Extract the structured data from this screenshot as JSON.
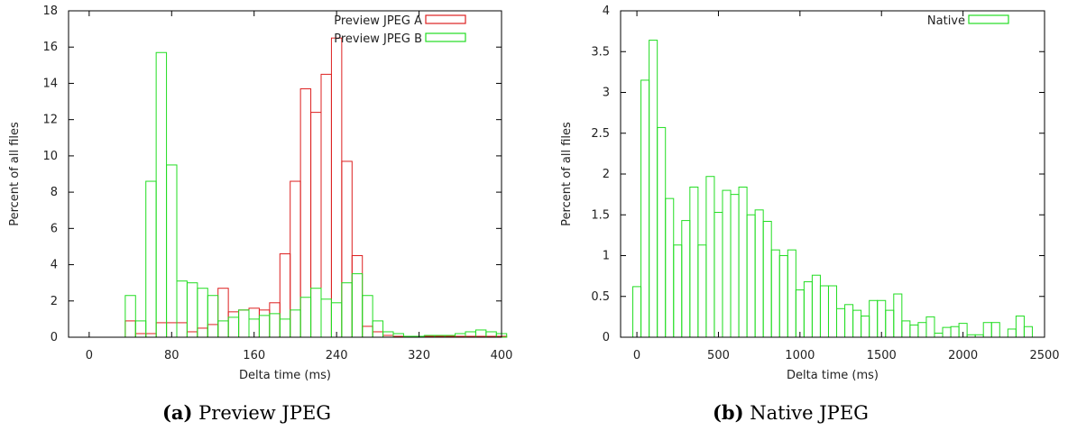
{
  "colors": {
    "series_a": "#dd2020",
    "series_b": "#22dd22",
    "axis": "#000000"
  },
  "captions": [
    {
      "tag": "(a)",
      "text": "Preview JPEG"
    },
    {
      "tag": "(b)",
      "text": "Native JPEG"
    }
  ],
  "chart_data": [
    {
      "type": "bar",
      "title": "",
      "xlabel": "Delta time (ms)",
      "ylabel": "Percent of all files",
      "xlim": [
        -20,
        400
      ],
      "ylim": [
        0,
        18
      ],
      "xticks": [
        "0",
        "80",
        "160",
        "240",
        "320",
        "400"
      ],
      "yticks": [
        "0",
        "2",
        "4",
        "6",
        "8",
        "10",
        "12",
        "14",
        "16",
        "18"
      ],
      "bin_width": 10,
      "legend": "top-right",
      "series": [
        {
          "name": "Preview JPEG A",
          "color": "#dd2020",
          "x": [
            40,
            50,
            60,
            70,
            80,
            90,
            100,
            110,
            120,
            130,
            140,
            150,
            160,
            170,
            180,
            190,
            200,
            210,
            220,
            230,
            240,
            250,
            260,
            270,
            280,
            290,
            300,
            310,
            320,
            330,
            340,
            350,
            360,
            370,
            380,
            390,
            400
          ],
          "values": [
            0.9,
            0.2,
            0.2,
            0.8,
            0.8,
            0.8,
            0.3,
            0.5,
            0.7,
            2.7,
            1.4,
            1.5,
            1.6,
            1.5,
            1.9,
            4.6,
            8.6,
            13.7,
            12.4,
            14.5,
            16.5,
            9.7,
            4.5,
            0.6,
            0.3,
            0.1,
            0.05,
            0.05,
            0.05,
            0.05,
            0.05,
            0.05,
            0.05,
            0.05,
            0.05,
            0.05,
            0.05
          ]
        },
        {
          "name": "Preview JPEG B",
          "color": "#22dd22",
          "x": [
            40,
            50,
            60,
            70,
            80,
            90,
            100,
            110,
            120,
            130,
            140,
            150,
            160,
            170,
            180,
            190,
            200,
            210,
            220,
            230,
            240,
            250,
            260,
            270,
            280,
            290,
            300,
            310,
            320,
            330,
            340,
            350,
            360,
            370,
            380,
            390,
            400
          ],
          "values": [
            2.3,
            0.9,
            8.6,
            15.7,
            9.5,
            3.1,
            3.0,
            2.7,
            2.3,
            0.9,
            1.1,
            1.5,
            1.0,
            1.2,
            1.3,
            1.0,
            1.5,
            2.2,
            2.7,
            2.1,
            1.9,
            3.0,
            3.5,
            2.3,
            0.9,
            0.3,
            0.2,
            0.05,
            0.05,
            0.1,
            0.1,
            0.1,
            0.2,
            0.3,
            0.4,
            0.3,
            0.2
          ]
        }
      ]
    },
    {
      "type": "bar",
      "title": "",
      "xlabel": "Delta time (ms)",
      "ylabel": "Percent of all files",
      "xlim": [
        -100,
        2500
      ],
      "ylim": [
        0,
        4
      ],
      "xticks": [
        "0",
        "500",
        "1000",
        "1500",
        "2000",
        "2500"
      ],
      "yticks": [
        "0",
        "0.5",
        "1",
        "1.5",
        "2",
        "2.5",
        "3",
        "3.5",
        "4"
      ],
      "bin_width": 50,
      "legend": "top-right",
      "series": [
        {
          "name": "Native",
          "color": "#22dd22",
          "x": [
            0,
            50,
            100,
            150,
            200,
            250,
            300,
            350,
            400,
            450,
            500,
            550,
            600,
            650,
            700,
            750,
            800,
            850,
            900,
            950,
            1000,
            1050,
            1100,
            1150,
            1200,
            1250,
            1300,
            1350,
            1400,
            1450,
            1500,
            1550,
            1600,
            1650,
            1700,
            1750,
            1800,
            1850,
            1900,
            1950,
            2000,
            2050,
            2100,
            2150,
            2200,
            2250,
            2300,
            2350,
            2400
          ],
          "values": [
            0.62,
            3.15,
            3.64,
            2.57,
            1.7,
            1.13,
            1.43,
            1.84,
            1.13,
            1.97,
            1.53,
            1.8,
            1.75,
            1.84,
            1.5,
            1.56,
            1.42,
            1.07,
            1.0,
            1.07,
            0.58,
            0.68,
            0.76,
            0.63,
            0.63,
            0.35,
            0.4,
            0.33,
            0.26,
            0.45,
            0.45,
            0.33,
            0.53,
            0.2,
            0.15,
            0.18,
            0.25,
            0.05,
            0.12,
            0.13,
            0.17,
            0.03,
            0.03,
            0.18,
            0.18,
            0.0,
            0.1,
            0.26,
            0.13
          ]
        }
      ]
    }
  ]
}
